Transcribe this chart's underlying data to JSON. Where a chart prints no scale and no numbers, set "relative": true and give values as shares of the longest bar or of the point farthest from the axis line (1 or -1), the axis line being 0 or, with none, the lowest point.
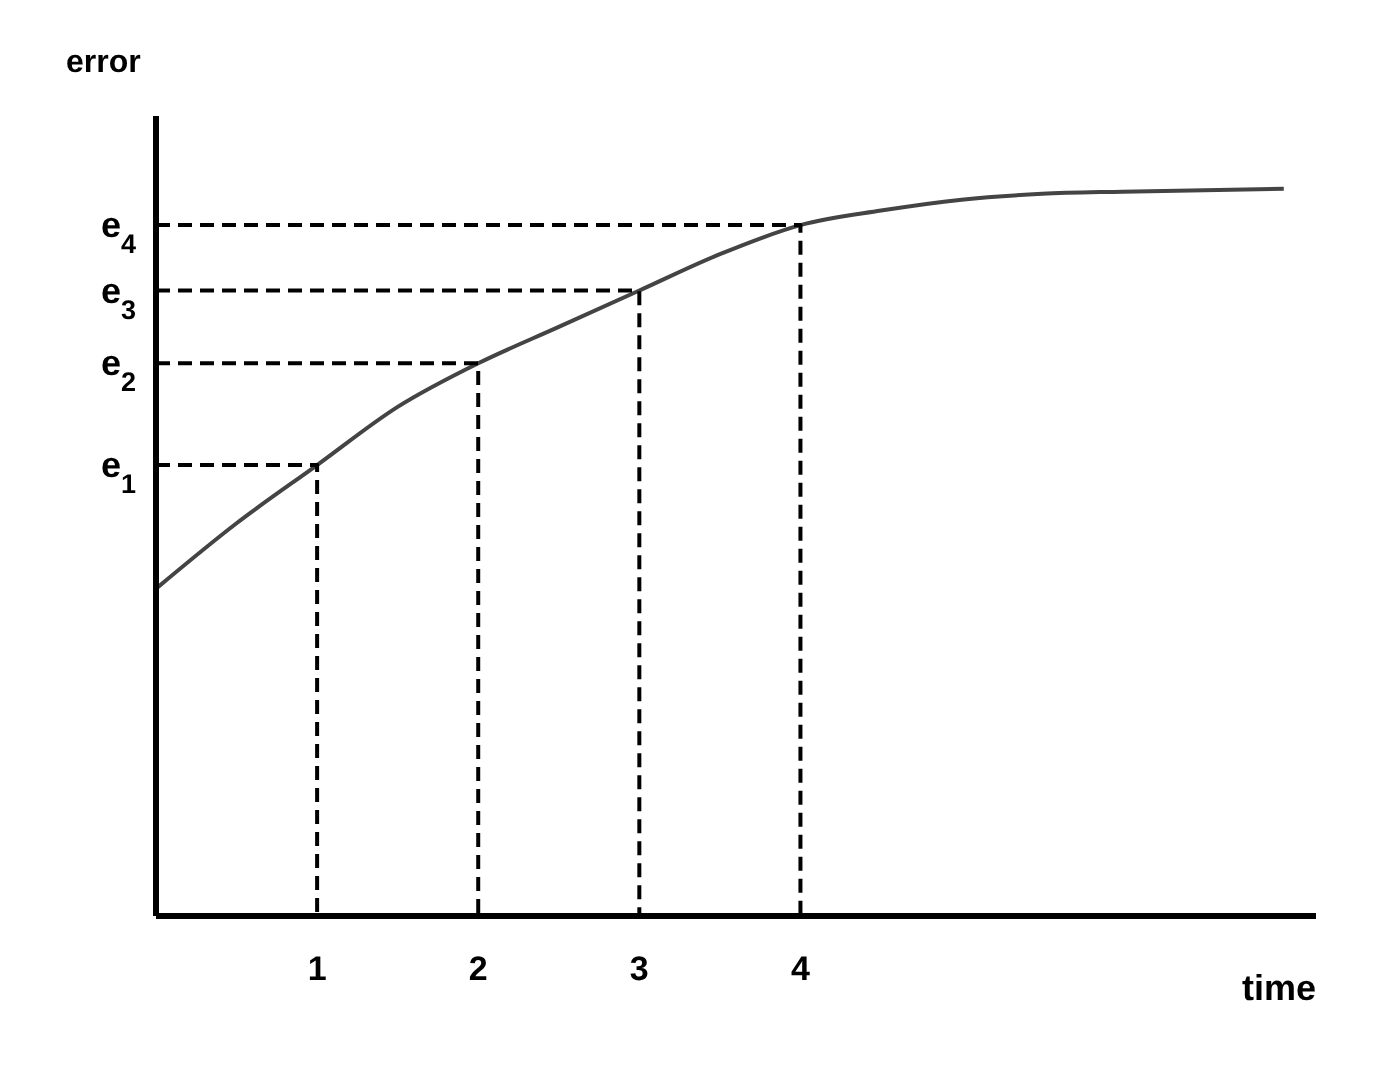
{
  "chart_data": {
    "type": "line",
    "relative": true,
    "xlabel": "time",
    "ylabel": "error",
    "x": [
      0,
      0.5,
      1,
      1.5,
      2,
      2.5,
      3,
      3.5,
      4,
      4.5,
      5,
      5.5,
      6,
      7
    ],
    "series": [
      {
        "color": "#444444",
        "values": [
          0.45,
          0.54,
          0.62,
          0.7,
          0.76,
          0.81,
          0.86,
          0.91,
          0.95,
          0.97,
          0.985,
          0.993,
          0.996,
          1.0
        ]
      },
      {
        "name": "e$_{1}$",
        "color": "#000000",
        "line_style": "dashed",
        "x": [
          0,
          1,
          1
        ],
        "values": [
          0.62,
          0.62,
          0
        ]
      },
      {
        "name": "e$_{2}$",
        "color": "#000000",
        "line_style": "dashed",
        "x": [
          0,
          2,
          2
        ],
        "values": [
          0.76,
          0.76,
          0
        ]
      },
      {
        "name": "e$_{3}$",
        "color": "#000000",
        "line_style": "dashed",
        "x": [
          0,
          3,
          3
        ],
        "values": [
          0.86,
          0.86,
          0
        ]
      },
      {
        "name": "e$_{4}$",
        "color": "#000000",
        "line_style": "dashed",
        "x": [
          0,
          4,
          4
        ],
        "values": [
          0.95,
          0.95,
          0
        ]
      }
    ],
    "xlim": [
      0,
      7.2
    ],
    "xticks": [
      1,
      2,
      3,
      4
    ],
    "grid": false,
    "legend": false,
    "marker": "none",
    "line_style": "solid"
  }
}
